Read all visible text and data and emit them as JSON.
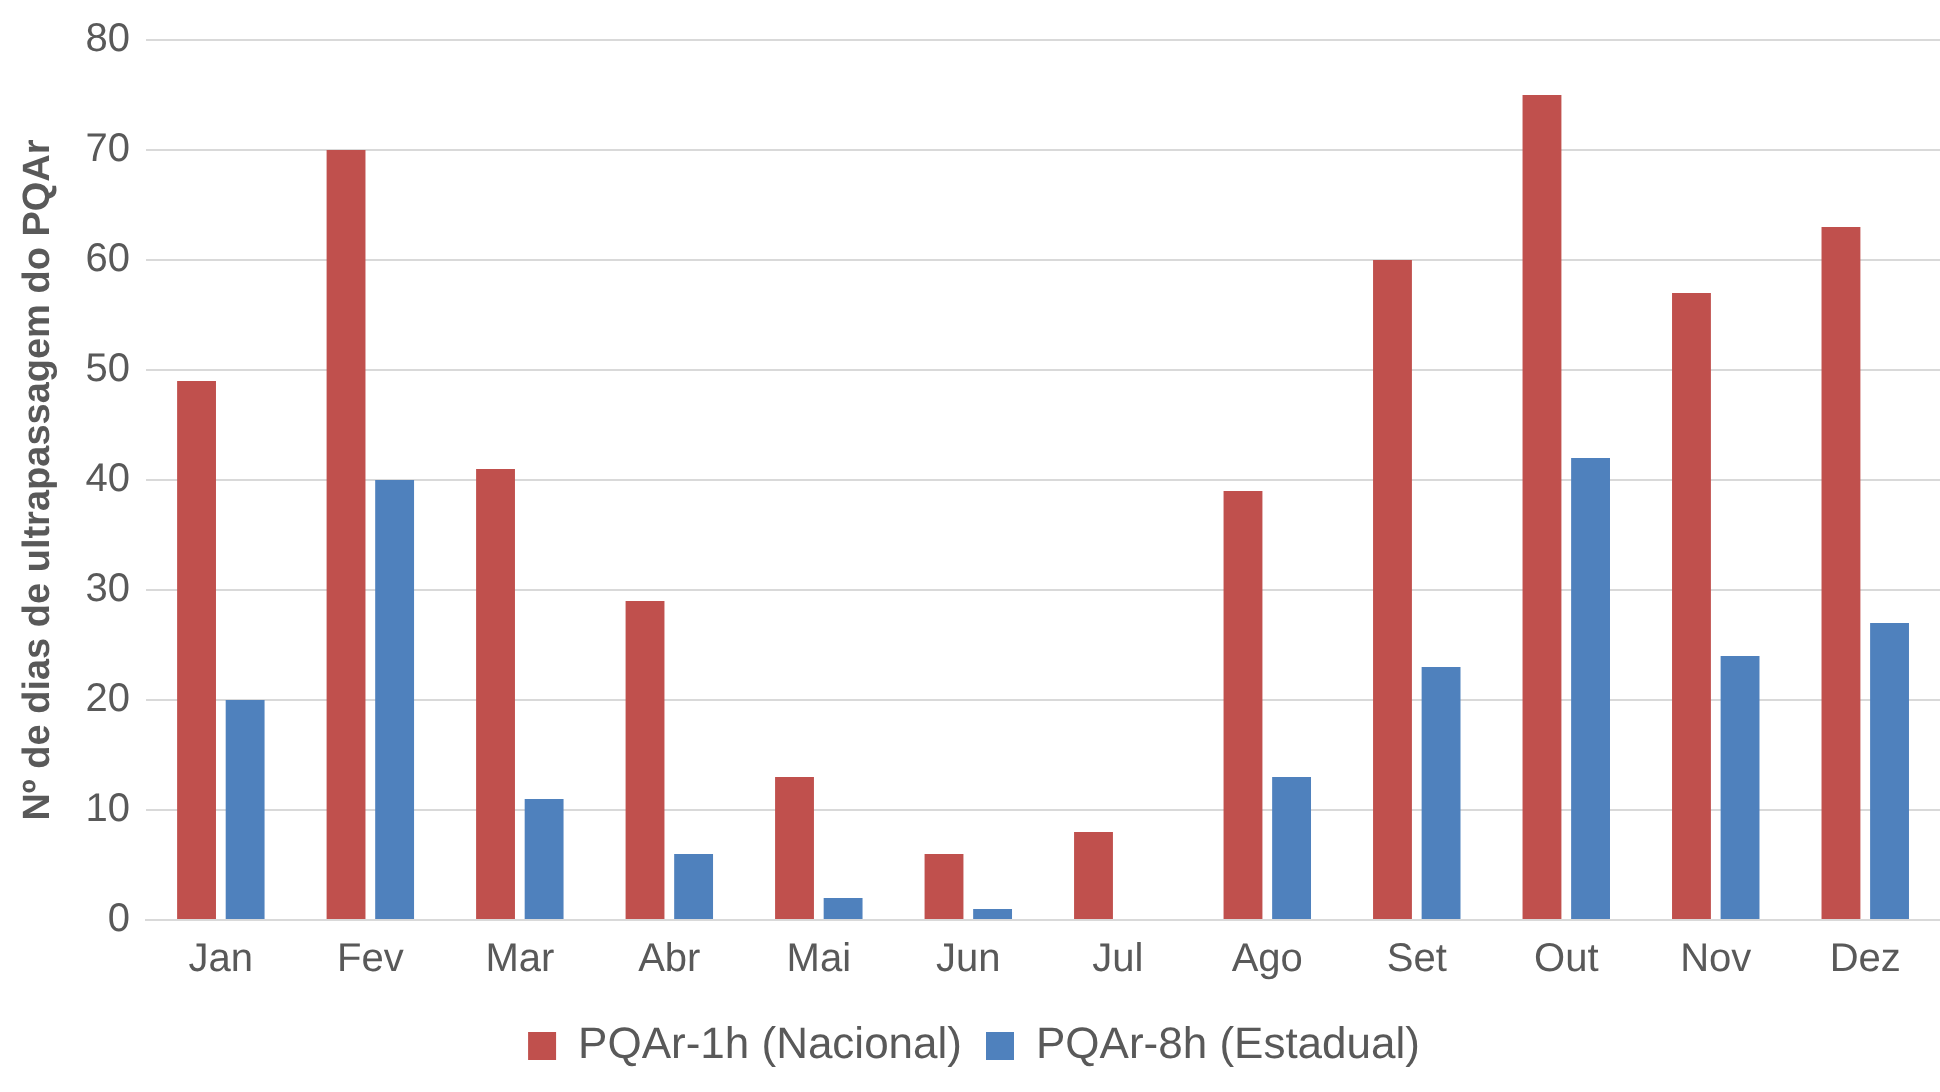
{
  "chart_data": {
    "type": "bar",
    "ylabel": "Nº de dias de ultrapassagem do PQAr",
    "categories": [
      "Jan",
      "Fev",
      "Mar",
      "Abr",
      "Mai",
      "Jun",
      "Jul",
      "Ago",
      "Set",
      "Out",
      "Nov",
      "Dez"
    ],
    "series": [
      {
        "name": "PQAr-1h (Nacional)",
        "color": "#c0504d",
        "values": [
          49,
          70,
          41,
          29,
          13,
          6,
          8,
          39,
          60,
          75,
          57,
          63
        ]
      },
      {
        "name": "PQAr-8h (Estadual)",
        "color": "#4f81bd",
        "values": [
          20,
          40,
          11,
          6,
          2,
          1,
          0,
          13,
          23,
          42,
          24,
          27
        ]
      }
    ],
    "ylim": [
      0,
      80
    ],
    "yticks": [
      0,
      10,
      20,
      30,
      40,
      50,
      60,
      70,
      80
    ],
    "grid": "y",
    "legend": "bottom"
  }
}
